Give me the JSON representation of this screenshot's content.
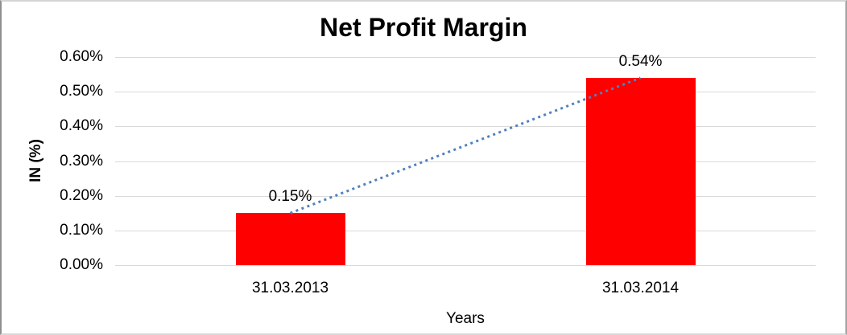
{
  "chart_data": {
    "type": "bar",
    "title": "Net Profit Margin",
    "xlabel": "Years",
    "ylabel": "IN (%)",
    "categories": [
      "31.03.2013",
      "31.03.2014"
    ],
    "values": [
      0.15,
      0.54
    ],
    "data_labels": [
      "0.15%",
      "0.54%"
    ],
    "y_ticks": [
      {
        "value": 0.6,
        "label": "0.60%"
      },
      {
        "value": 0.5,
        "label": "0.50%"
      },
      {
        "value": 0.4,
        "label": "0.40%"
      },
      {
        "value": 0.3,
        "label": "0.30%"
      },
      {
        "value": 0.2,
        "label": "0.20%"
      },
      {
        "value": 0.1,
        "label": "0.10%"
      },
      {
        "value": 0.0,
        "label": "0.00%"
      }
    ],
    "ylim": [
      0,
      0.6
    ],
    "grid": true,
    "legend": false,
    "bar_color": "#ff0000",
    "gridline_color": "#d9d9d9",
    "trendline": {
      "type": "linear",
      "style": "dotted",
      "color": "#4f81bd"
    }
  }
}
